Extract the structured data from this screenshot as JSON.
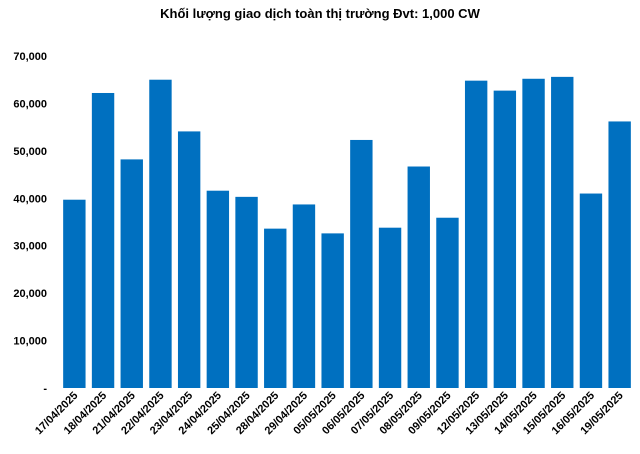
{
  "chart_data": {
    "type": "bar",
    "title": "Khối lượng giao dịch toàn thị trường Đvt: 1,000 CW",
    "xlabel": "",
    "ylabel": "",
    "ylim": [
      0,
      70000
    ],
    "yticks": [
      0,
      10000,
      20000,
      30000,
      40000,
      50000,
      60000,
      70000
    ],
    "ytick_labels": [
      "-",
      "10,000",
      "20,000",
      "30,000",
      "40,000",
      "50,000",
      "60,000",
      "70,000"
    ],
    "grid": false,
    "legend": "none",
    "bar_color": "#0070C0",
    "categories": [
      "17/04/2025",
      "18/04/2025",
      "21/04/2025",
      "22/04/2025",
      "23/04/2025",
      "24/04/2025",
      "25/04/2025",
      "28/04/2025",
      "29/04/2025",
      "05/05/2025",
      "06/05/2025",
      "07/05/2025",
      "08/05/2025",
      "09/05/2025",
      "12/05/2025",
      "13/05/2025",
      "14/05/2025",
      "15/05/2025",
      "16/05/2025",
      "19/05/2025"
    ],
    "values": [
      39700,
      62200,
      48200,
      65000,
      54100,
      41600,
      40300,
      33600,
      38700,
      32600,
      52300,
      33800,
      46700,
      35900,
      64800,
      62700,
      65200,
      65600,
      41000,
      56200
    ]
  }
}
